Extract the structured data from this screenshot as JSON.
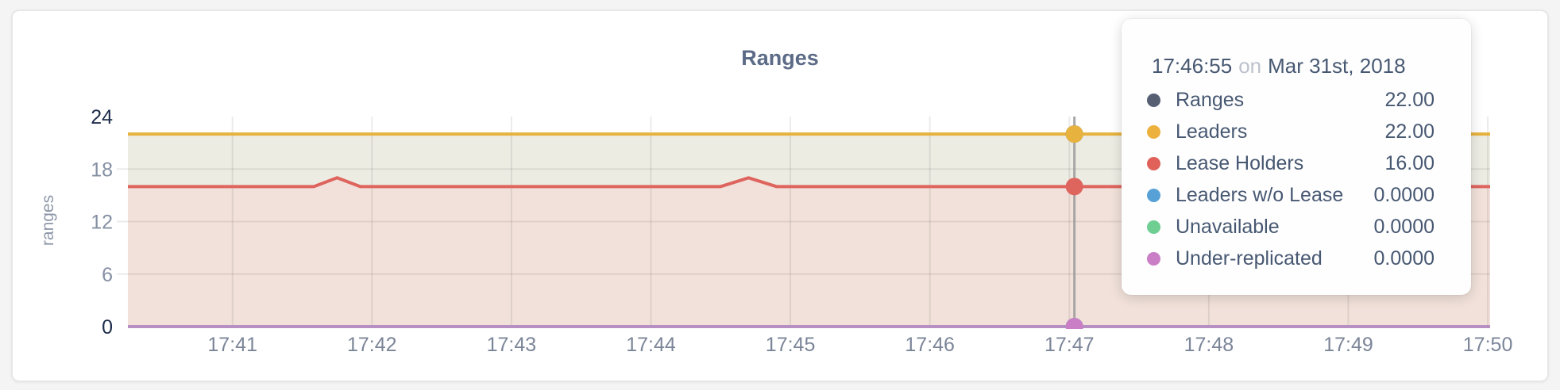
{
  "panel": {
    "title": "Ranges"
  },
  "tooltip": {
    "time": "17:46:55",
    "connector": "on",
    "date": "Mar 31st, 2018",
    "series": [
      {
        "label": "Ranges",
        "value": "22.00",
        "color": "#575f73"
      },
      {
        "label": "Leaders",
        "value": "22.00",
        "color": "#ecb23d"
      },
      {
        "label": "Lease Holders",
        "value": "16.00",
        "color": "#e0615a"
      },
      {
        "label": "Leaders w/o Lease",
        "value": "0.0000",
        "color": "#57a1d6"
      },
      {
        "label": "Unavailable",
        "value": "0.0000",
        "color": "#6fce92"
      },
      {
        "label": "Under-replicated",
        "value": "0.0000",
        "color": "#ca7ec6"
      }
    ]
  },
  "chart_data": {
    "type": "line",
    "title": "Ranges",
    "xlabel": "",
    "ylabel": "ranges",
    "x_domain": [
      "17:40:15",
      "17:50:01"
    ],
    "ylim": [
      0,
      24
    ],
    "y_ticks": [
      0,
      6,
      12,
      18,
      24
    ],
    "grid_y": [
      6,
      12,
      18
    ],
    "x_ticks": [
      {
        "t": "17:41:00",
        "label": "17:41"
      },
      {
        "t": "17:42:00",
        "label": "17:42"
      },
      {
        "t": "17:43:00",
        "label": "17:43"
      },
      {
        "t": "17:44:00",
        "label": "17:44"
      },
      {
        "t": "17:45:00",
        "label": "17:45"
      },
      {
        "t": "17:46:00",
        "label": "17:46"
      },
      {
        "t": "17:47:00",
        "label": "17:47"
      },
      {
        "t": "17:48:00",
        "label": "17:48"
      },
      {
        "t": "17:49:00",
        "label": "17:49"
      },
      {
        "t": "17:50:00",
        "label": "17:50"
      }
    ],
    "axis": {
      "strong_color": "#1c2b49",
      "muted_color": "#8590a3",
      "x_color": "#7b8598",
      "grid_color": "rgba(0,0,0,0.08)",
      "guideline_color": "#9b9b9b"
    },
    "legend_position": "tooltip",
    "grid": true,
    "series": [
      {
        "name": "Ranges",
        "color": "#575f73",
        "width": 3,
        "hover_value": 22,
        "points": [
          [
            "17:40:15",
            22
          ],
          [
            "17:50:01",
            22
          ]
        ]
      },
      {
        "name": "Leaders",
        "color": "#e7b23e",
        "fill": "#edece3",
        "width": 4,
        "hover_value": 22,
        "points": [
          [
            "17:40:15",
            22
          ],
          [
            "17:50:01",
            22
          ]
        ]
      },
      {
        "name": "Lease Holders",
        "color": "#de655e",
        "fill": "#f1e1da",
        "width": 4,
        "hover_value": 16,
        "points": [
          [
            "17:40:15",
            16
          ],
          [
            "17:41:35",
            16
          ],
          [
            "17:41:45",
            17
          ],
          [
            "17:41:55",
            16
          ],
          [
            "17:44:30",
            16
          ],
          [
            "17:44:42",
            17
          ],
          [
            "17:44:54",
            16
          ],
          [
            "17:50:01",
            16
          ]
        ]
      },
      {
        "name": "Leaders w/o Lease",
        "color": "#57a1d6",
        "width": 3,
        "hover_value": 0,
        "points": [
          [
            "17:40:15",
            0
          ],
          [
            "17:50:01",
            0
          ]
        ]
      },
      {
        "name": "Unavailable",
        "color": "#6fce92",
        "width": 3,
        "hover_value": 0,
        "points": [
          [
            "17:40:15",
            0
          ],
          [
            "17:50:01",
            0
          ]
        ]
      },
      {
        "name": "Under-replicated",
        "color": "#ca7ec6",
        "line_color": "#b78fc2",
        "width": 4,
        "hover_value": 0,
        "points": [
          [
            "17:40:15",
            0
          ],
          [
            "17:50:01",
            0
          ]
        ]
      }
    ]
  }
}
